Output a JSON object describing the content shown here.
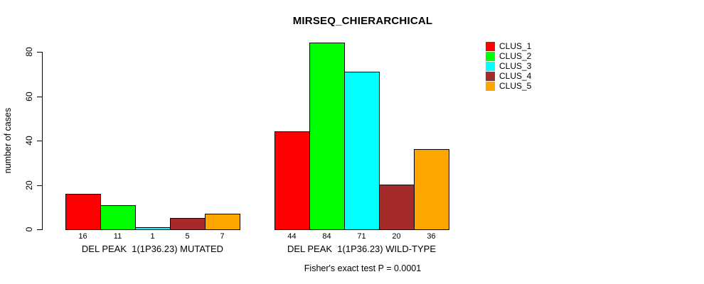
{
  "chart_data": {
    "type": "bar",
    "title": "MIRSEQ_CHIERARCHICAL",
    "ylabel": "number of cases",
    "xlabel": "",
    "ylim": [
      0,
      80
    ],
    "yticks": [
      0,
      20,
      40,
      60,
      80
    ],
    "grid": false,
    "legend_position": "right",
    "legend": [
      "CLUS_1",
      "CLUS_2",
      "CLUS_3",
      "CLUS_4",
      "CLUS_5"
    ],
    "colors": [
      "#FF0000",
      "#00FF00",
      "#00FFFF",
      "#A52A2A",
      "#FFA500"
    ],
    "groups": [
      {
        "label": "DEL PEAK  1(1P36.23) MUTATED",
        "values": [
          16,
          11,
          1,
          5,
          7
        ]
      },
      {
        "label": "DEL PEAK  1(1P36.23) WILD-TYPE",
        "values": [
          44,
          84,
          71,
          20,
          36
        ]
      }
    ],
    "footnote": "Fisher's exact test P = 0.0001"
  }
}
